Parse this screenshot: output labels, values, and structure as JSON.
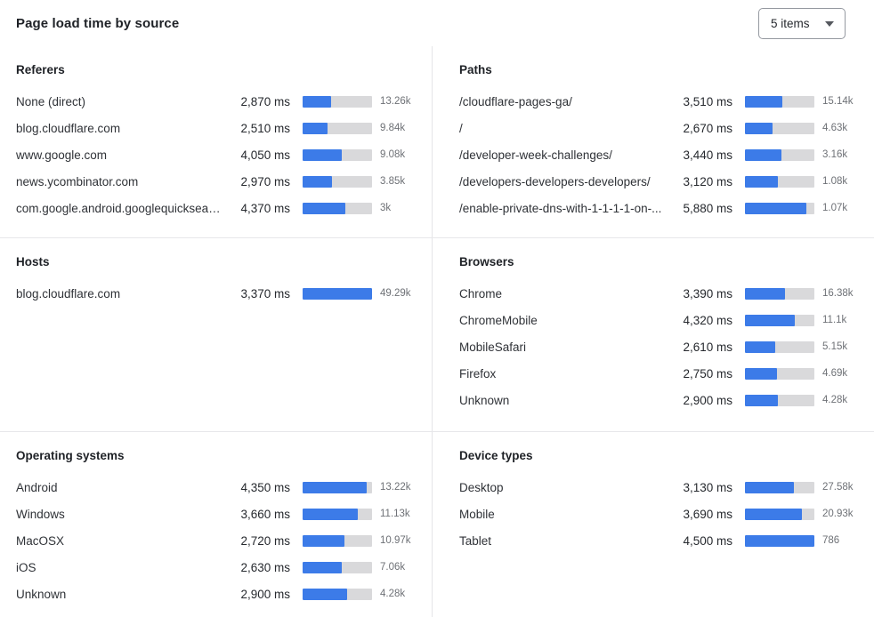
{
  "header": {
    "title": "Page load time by source",
    "items_selector": {
      "value": "5 items"
    }
  },
  "colors": {
    "bar_fill": "#3c7be8",
    "bar_track": "#d9d9db"
  },
  "chart_data": [
    {
      "type": "bar",
      "title": "Referers",
      "value_unit": "ms",
      "rows": [
        {
          "label": "None (direct)",
          "ms": "2,870 ms",
          "ms_value": 2870,
          "count": "13.26k",
          "bar_pct": 41
        },
        {
          "label": "blog.cloudflare.com",
          "ms": "2,510 ms",
          "ms_value": 2510,
          "count": "9.84k",
          "bar_pct": 36
        },
        {
          "label": "www.google.com",
          "ms": "4,050 ms",
          "ms_value": 4050,
          "count": "9.08k",
          "bar_pct": 56
        },
        {
          "label": "news.ycombinator.com",
          "ms": "2,970 ms",
          "ms_value": 2970,
          "count": "3.85k",
          "bar_pct": 42
        },
        {
          "label": "com.google.android.googlequicksearc...",
          "ms": "4,370 ms",
          "ms_value": 4370,
          "count": "3k",
          "bar_pct": 62
        }
      ]
    },
    {
      "type": "bar",
      "title": "Paths",
      "value_unit": "ms",
      "rows": [
        {
          "label": "/cloudflare-pages-ga/",
          "ms": "3,510 ms",
          "ms_value": 3510,
          "count": "15.14k",
          "bar_pct": 54
        },
        {
          "label": "/",
          "ms": "2,670 ms",
          "ms_value": 2670,
          "count": "4.63k",
          "bar_pct": 40
        },
        {
          "label": "/developer-week-challenges/",
          "ms": "3,440 ms",
          "ms_value": 3440,
          "count": "3.16k",
          "bar_pct": 52
        },
        {
          "label": "/developers-developers-developers/",
          "ms": "3,120 ms",
          "ms_value": 3120,
          "count": "1.08k",
          "bar_pct": 47
        },
        {
          "label": "/enable-private-dns-with-1-1-1-1-on-...",
          "ms": "5,880 ms",
          "ms_value": 5880,
          "count": "1.07k",
          "bar_pct": 89
        }
      ]
    },
    {
      "type": "bar",
      "title": "Hosts",
      "value_unit": "ms",
      "rows": [
        {
          "label": "blog.cloudflare.com",
          "ms": "3,370 ms",
          "ms_value": 3370,
          "count": "49.29k",
          "bar_pct": 100
        }
      ]
    },
    {
      "type": "bar",
      "title": "Browsers",
      "value_unit": "ms",
      "rows": [
        {
          "label": "Chrome",
          "ms": "3,390 ms",
          "ms_value": 3390,
          "count": "16.38k",
          "bar_pct": 58
        },
        {
          "label": "ChromeMobile",
          "ms": "4,320 ms",
          "ms_value": 4320,
          "count": "11.1k",
          "bar_pct": 72
        },
        {
          "label": "MobileSafari",
          "ms": "2,610 ms",
          "ms_value": 2610,
          "count": "5.15k",
          "bar_pct": 44
        },
        {
          "label": "Firefox",
          "ms": "2,750 ms",
          "ms_value": 2750,
          "count": "4.69k",
          "bar_pct": 46
        },
        {
          "label": "Unknown",
          "ms": "2,900 ms",
          "ms_value": 2900,
          "count": "4.28k",
          "bar_pct": 48
        }
      ]
    },
    {
      "type": "bar",
      "title": "Operating systems",
      "value_unit": "ms",
      "rows": [
        {
          "label": "Android",
          "ms": "4,350 ms",
          "ms_value": 4350,
          "count": "13.22k",
          "bar_pct": 92
        },
        {
          "label": "Windows",
          "ms": "3,660 ms",
          "ms_value": 3660,
          "count": "11.13k",
          "bar_pct": 80
        },
        {
          "label": "MacOSX",
          "ms": "2,720 ms",
          "ms_value": 2720,
          "count": "10.97k",
          "bar_pct": 60
        },
        {
          "label": "iOS",
          "ms": "2,630 ms",
          "ms_value": 2630,
          "count": "7.06k",
          "bar_pct": 57
        },
        {
          "label": "Unknown",
          "ms": "2,900 ms",
          "ms_value": 2900,
          "count": "4.28k",
          "bar_pct": 64
        }
      ]
    },
    {
      "type": "bar",
      "title": "Device types",
      "value_unit": "ms",
      "rows": [
        {
          "label": "Desktop",
          "ms": "3,130 ms",
          "ms_value": 3130,
          "count": "27.58k",
          "bar_pct": 70
        },
        {
          "label": "Mobile",
          "ms": "3,690 ms",
          "ms_value": 3690,
          "count": "20.93k",
          "bar_pct": 82
        },
        {
          "label": "Tablet",
          "ms": "4,500 ms",
          "ms_value": 4500,
          "count": "786",
          "bar_pct": 100
        }
      ]
    }
  ]
}
